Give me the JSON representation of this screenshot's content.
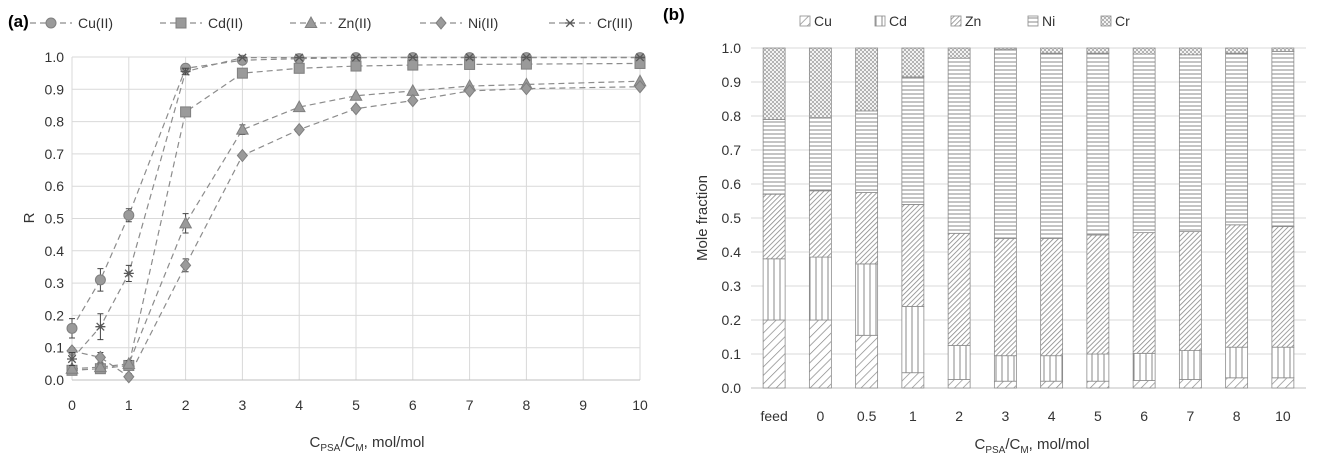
{
  "panels": [
    {
      "id": "a",
      "label": "(a)",
      "chart_data": {
        "type": "line",
        "title": "",
        "xlabel": {
          "main": "C",
          "sub1": "PSA",
          "mid": "/C",
          "sub2": "M",
          "tail": ", mol/mol"
        },
        "ylabel": "R",
        "xlim": [
          0,
          10
        ],
        "ylim": [
          0,
          1.0
        ],
        "xticks": [
          0,
          1,
          2,
          3,
          4,
          5,
          6,
          7,
          8,
          9,
          10
        ],
        "yticks": [
          "0.0",
          "0.1",
          "0.2",
          "0.3",
          "0.4",
          "0.5",
          "0.6",
          "0.7",
          "0.8",
          "0.9",
          "1.0"
        ],
        "grid": true,
        "legend": "top",
        "series": [
          {
            "name": "Cu(II)",
            "marker": "circle",
            "x": [
              0,
              0.5,
              1,
              2,
              3,
              4,
              5,
              6,
              7,
              8,
              10
            ],
            "y": [
              0.16,
              0.31,
              0.51,
              0.965,
              0.99,
              0.995,
              0.998,
              0.998,
              0.998,
              0.998,
              0.998
            ],
            "err": [
              0.03,
              0.035,
              0.02,
              0.01,
              0,
              0,
              0,
              0,
              0,
              0,
              0
            ]
          },
          {
            "name": "Cd(II)",
            "marker": "square",
            "x": [
              0,
              0.5,
              1,
              2,
              3,
              4,
              5,
              6,
              7,
              8,
              10
            ],
            "y": [
              0.03,
              0.035,
              0.045,
              0.83,
              0.95,
              0.965,
              0.972,
              0.975,
              0.977,
              0.978,
              0.98
            ],
            "err": [
              0.01,
              0.01,
              0.01,
              0,
              0,
              0,
              0,
              0,
              0,
              0,
              0
            ]
          },
          {
            "name": "Zn(II)",
            "marker": "triangle",
            "x": [
              0,
              0.5,
              1,
              2,
              3,
              4,
              5,
              6,
              7,
              8,
              10
            ],
            "y": [
              0.035,
              0.04,
              0.05,
              0.485,
              0.775,
              0.845,
              0.88,
              0.895,
              0.91,
              0.915,
              0.925
            ],
            "err": [
              0.01,
              0.01,
              0.01,
              0.03,
              0.015,
              0,
              0,
              0,
              0,
              0,
              0
            ]
          },
          {
            "name": "Ni(II)",
            "marker": "diamond",
            "x": [
              0,
              0.5,
              1,
              2,
              3,
              4,
              5,
              6,
              7,
              8,
              10
            ],
            "y": [
              0.09,
              0.07,
              0.01,
              0.355,
              0.695,
              0.775,
              0.84,
              0.865,
              0.895,
              0.902,
              0.908
            ],
            "err": [
              0.01,
              0.015,
              0.01,
              0.02,
              0,
              0,
              0,
              0,
              0,
              0,
              0
            ]
          },
          {
            "name": "Cr(III)",
            "marker": "star",
            "x": [
              0,
              0.5,
              1,
              2,
              3,
              4,
              5,
              6,
              7,
              8,
              10
            ],
            "y": [
              0.065,
              0.165,
              0.33,
              0.955,
              0.998,
              0.998,
              0.998,
              0.999,
              0.999,
              0.999,
              0.999
            ],
            "err": [
              0.02,
              0.04,
              0.025,
              0.01,
              0,
              0,
              0,
              0,
              0,
              0,
              0
            ]
          }
        ]
      }
    },
    {
      "id": "b",
      "label": "(b)",
      "chart_data": {
        "type": "bar",
        "stacked": true,
        "title": "",
        "xlabel": {
          "main": "C",
          "sub1": "PSA",
          "mid": "/C",
          "sub2": "M",
          "tail": ", mol/mol"
        },
        "ylabel": "Mole fraction",
        "ylim": [
          0,
          1.0
        ],
        "yticks": [
          "0.0",
          "0.1",
          "0.2",
          "0.3",
          "0.4",
          "0.5",
          "0.6",
          "0.7",
          "0.8",
          "0.9",
          "1.0"
        ],
        "grid": true,
        "legend": "top",
        "categories": [
          "feed",
          "0",
          "0.5",
          "1",
          "2",
          "3",
          "4",
          "5",
          "6",
          "7",
          "8",
          "10"
        ],
        "series": [
          {
            "name": "Cu",
            "pattern": "diag-sparse",
            "values": [
              0.2,
              0.2,
              0.155,
              0.045,
              0.025,
              0.02,
              0.02,
              0.02,
              0.022,
              0.025,
              0.03,
              0.03
            ]
          },
          {
            "name": "Cd",
            "pattern": "vertical",
            "values": [
              0.18,
              0.185,
              0.21,
              0.195,
              0.1,
              0.075,
              0.075,
              0.08,
              0.08,
              0.085,
              0.09,
              0.09
            ]
          },
          {
            "name": "Zn",
            "pattern": "diag-dense",
            "values": [
              0.19,
              0.195,
              0.21,
              0.3,
              0.33,
              0.345,
              0.345,
              0.35,
              0.355,
              0.35,
              0.36,
              0.355
            ]
          },
          {
            "name": "Ni",
            "pattern": "horizontal",
            "values": [
              0.22,
              0.215,
              0.24,
              0.375,
              0.515,
              0.555,
              0.545,
              0.535,
              0.525,
              0.52,
              0.505,
              0.515
            ]
          },
          {
            "name": "Cr",
            "pattern": "crosshatch",
            "values": [
              0.21,
              0.205,
              0.185,
              0.085,
              0.03,
              0.005,
              0.015,
              0.015,
              0.018,
              0.02,
              0.015,
              0.01
            ]
          }
        ]
      }
    }
  ]
}
